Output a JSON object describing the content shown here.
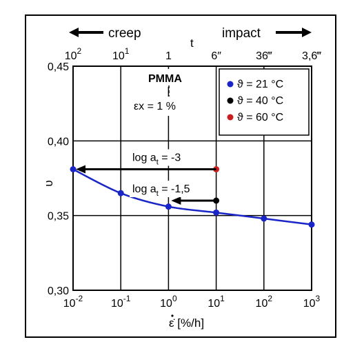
{
  "chart_data": {
    "type": "line",
    "title": "PMMA",
    "subtitle": "εx = 1 %",
    "xlabel": "ε̇ [%/h]",
    "ylabel": "υ",
    "x_scale": "log",
    "xlim": [
      0.01,
      1000
    ],
    "ylim": [
      0.3,
      0.45
    ],
    "grid": true,
    "x_ticks": [
      {
        "value": 0.01,
        "base": "10",
        "exp": "-2"
      },
      {
        "value": 0.1,
        "base": "10",
        "exp": "-1"
      },
      {
        "value": 1,
        "base": "10",
        "exp": "0"
      },
      {
        "value": 10,
        "base": "10",
        "exp": "1"
      },
      {
        "value": 100,
        "base": "10",
        "exp": "2"
      },
      {
        "value": 1000,
        "base": "10",
        "exp": "3"
      }
    ],
    "y_ticks": [
      {
        "value": 0.3,
        "label": "0,30"
      },
      {
        "value": 0.35,
        "label": "0,35"
      },
      {
        "value": 0.4,
        "label": "0,40"
      },
      {
        "value": 0.45,
        "label": "0,45"
      }
    ],
    "top_axis": {
      "label": "t",
      "ticks": [
        {
          "value": 0.01,
          "base": "10",
          "exp": "2"
        },
        {
          "value": 0.1,
          "base": "10",
          "exp": "1"
        },
        {
          "value": 1,
          "base": "1",
          "exp": ""
        },
        {
          "value": 10,
          "base": "6″",
          "exp": ""
        },
        {
          "value": 100,
          "base": "36‴",
          "exp": ""
        },
        {
          "value": 1000,
          "base": "3,6‴",
          "exp": ""
        }
      ],
      "left_arrow_label": "creep",
      "right_arrow_label": "impact"
    },
    "legend": {
      "position": "top-right",
      "entries": [
        {
          "label": "ϑ = 21 °C",
          "color": "#1a25c8"
        },
        {
          "label": "ϑ = 40 °C",
          "color": "#000000"
        },
        {
          "label": "ϑ = 60 °C",
          "color": "#c81e1e"
        }
      ]
    },
    "series": [
      {
        "label_ref": 0,
        "color": "#1a25c8",
        "line": true,
        "points": [
          {
            "x": 0.01,
            "y": 0.381
          },
          {
            "x": 0.1,
            "y": 0.365
          },
          {
            "x": 1,
            "y": 0.356
          },
          {
            "x": 10,
            "y": 0.352
          },
          {
            "x": 100,
            "y": 0.348
          },
          {
            "x": 1000,
            "y": 0.344
          }
        ]
      },
      {
        "label_ref": 1,
        "color": "#000000",
        "line": false,
        "points": [
          {
            "x": 10,
            "y": 0.36
          }
        ]
      },
      {
        "label_ref": 2,
        "color": "#c81e1e",
        "line": false,
        "points": [
          {
            "x": 10,
            "y": 0.381
          }
        ]
      }
    ],
    "annotations": [
      {
        "text_main": "log a",
        "text_sub": "t",
        "text_rest": " = -3",
        "arrow_from": [
          10,
          0.381
        ],
        "arrow_to": [
          0.01,
          0.381
        ]
      },
      {
        "text_main": "log a",
        "text_sub": "t",
        "text_rest": " = -1,5",
        "arrow_from": [
          10,
          0.36
        ],
        "arrow_to": [
          1,
          0.36
        ]
      }
    ]
  }
}
